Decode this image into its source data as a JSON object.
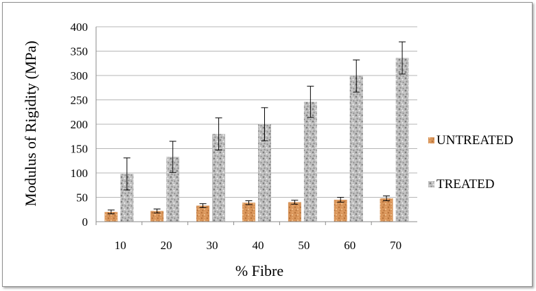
{
  "chart_data": {
    "type": "bar",
    "title": "",
    "xlabel": "% Fibre",
    "ylabel": "Modulus of Rigidity (MPa)",
    "ylim": [
      0,
      400
    ],
    "yticks": [
      0,
      50,
      100,
      150,
      200,
      250,
      300,
      350,
      400
    ],
    "categories": [
      "10",
      "20",
      "30",
      "40",
      "50",
      "60",
      "70"
    ],
    "grid": "horizontal",
    "legend": "right",
    "series": [
      {
        "name": "UNTREATED",
        "color": "#d08a4a",
        "values": [
          20,
          22,
          33,
          39,
          40,
          45,
          48
        ],
        "errors": [
          4,
          4,
          4,
          4,
          4,
          5,
          5
        ]
      },
      {
        "name": "TREATED",
        "color": "#b3b3b3",
        "values": [
          98,
          133,
          180,
          200,
          246,
          299,
          336
        ],
        "errors": [
          33,
          32,
          33,
          34,
          32,
          33,
          33
        ]
      }
    ]
  }
}
